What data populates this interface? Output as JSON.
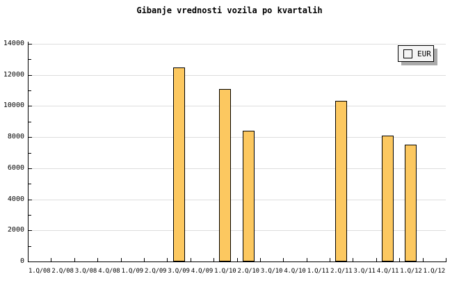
{
  "title": "Gibanje vrednosti vozila po kvartalih",
  "legend": {
    "label": "EUR",
    "position": "top-right"
  },
  "colors": {
    "bar_fill": "#FCC860",
    "bar_border": "#000000",
    "grid": "#DDDDDD",
    "axis": "#000000",
    "legend_bg": "#F5F5F5",
    "legend_shadow": "#AAAAAA",
    "background": "#FFFFFF"
  },
  "chart_data": {
    "type": "bar",
    "title": "Gibanje vrednosti vozila po kvartalih",
    "categories": [
      "1.Q/08",
      "2.Q/08",
      "3.Q/08",
      "4.Q/08",
      "1.Q/09",
      "2.Q/09",
      "3.Q/09",
      "4.Q/09",
      "1.Q/10",
      "2.Q/10",
      "3.Q/10",
      "4.Q/10",
      "1.Q/11",
      "2.Q/11",
      "3.Q/11",
      "4.Q/11",
      "1.Q/12",
      "1.Q/12"
    ],
    "series": [
      {
        "name": "EUR",
        "values": [
          null,
          null,
          null,
          null,
          null,
          null,
          12500,
          null,
          11100,
          8400,
          null,
          null,
          null,
          10350,
          null,
          8100,
          7500,
          null
        ]
      }
    ],
    "xlabel": "",
    "ylabel": "",
    "ylim": [
      0,
      14000
    ],
    "ytick_label_step": 2000,
    "ytick_minor_step": 1000,
    "grid": true,
    "legend_position": "top-right",
    "legend_entries": [
      "EUR"
    ]
  }
}
